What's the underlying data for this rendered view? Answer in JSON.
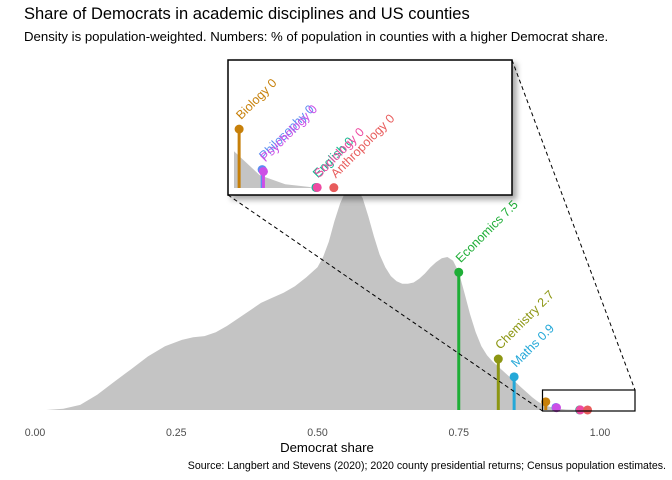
{
  "header": {
    "title": "Share of Democrats in academic disciplines and US counties",
    "subtitle": "Density is population-weighted. Numbers: % of population in counties with a higher Democrat share.",
    "caption": "Source: Langbert and Stevens (2020); 2020 county presidential returns; Census population estimates."
  },
  "chart_data": {
    "type": "area",
    "xlabel": "Democrat share",
    "ylabel": "",
    "xlim": [
      0,
      1.06
    ],
    "x_ticks": [
      "0.00",
      "0.25",
      "0.50",
      "0.75",
      "1.00"
    ],
    "x_tick_values": [
      0,
      0.25,
      0.5,
      0.75,
      1.0
    ],
    "grid": false,
    "density": {
      "name": "",
      "fill": "#c4c4c4",
      "x": [
        0.02,
        0.05,
        0.08,
        0.11,
        0.14,
        0.17,
        0.2,
        0.23,
        0.26,
        0.28,
        0.3,
        0.32,
        0.34,
        0.36,
        0.38,
        0.4,
        0.42,
        0.44,
        0.46,
        0.48,
        0.5,
        0.51,
        0.52,
        0.53,
        0.54,
        0.55,
        0.56,
        0.57,
        0.58,
        0.59,
        0.6,
        0.61,
        0.62,
        0.63,
        0.64,
        0.65,
        0.66,
        0.67,
        0.68,
        0.69,
        0.7,
        0.71,
        0.72,
        0.73,
        0.74,
        0.75,
        0.76,
        0.77,
        0.78,
        0.79,
        0.8,
        0.81,
        0.82,
        0.83,
        0.84,
        0.85,
        0.86,
        0.87,
        0.88,
        0.89,
        0.9,
        0.92,
        0.94,
        0.96,
        0.98,
        1.0
      ],
      "y": [
        0.0,
        0.05,
        0.2,
        0.6,
        1.1,
        1.6,
        2.1,
        2.5,
        2.75,
        2.85,
        2.9,
        3.05,
        3.3,
        3.6,
        3.9,
        4.2,
        4.4,
        4.6,
        4.85,
        5.2,
        5.6,
        6.0,
        6.6,
        7.4,
        8.1,
        8.6,
        8.8,
        8.7,
        8.3,
        7.6,
        6.8,
        6.1,
        5.6,
        5.25,
        5.05,
        4.95,
        4.95,
        5.0,
        5.15,
        5.35,
        5.6,
        5.8,
        5.95,
        6.0,
        5.85,
        5.4,
        4.6,
        3.75,
        3.05,
        2.5,
        2.15,
        1.9,
        1.7,
        1.5,
        1.3,
        1.1,
        0.9,
        0.7,
        0.5,
        0.33,
        0.2,
        0.07,
        0.02,
        0.005,
        0.0,
        0.0
      ]
    },
    "series": [
      {
        "name": "Economics",
        "label": "Economics 7.5",
        "x": 0.75,
        "y": 5.4,
        "color": "#1fae37"
      },
      {
        "name": "Chemistry",
        "label": "Chemistry 2.7",
        "x": 0.82,
        "y": 2.0,
        "color": "#8c9612"
      },
      {
        "name": "Maths",
        "label": "Maths 0.9",
        "x": 0.848,
        "y": 1.3,
        "color": "#24a8d8"
      },
      {
        "name": "Biology",
        "label": "Biology 0",
        "x": 0.904,
        "y": 0.32,
        "color": "#c7800a"
      },
      {
        "name": "Philosophy",
        "label": "Philosophy 0",
        "x": 0.922,
        "y": 0.1,
        "color": "#5c8cf2"
      },
      {
        "name": "Psychology",
        "label": "Psychology 0",
        "x": 0.923,
        "y": 0.09,
        "color": "#cc4fe6"
      },
      {
        "name": "English",
        "label": "English 0",
        "x": 0.964,
        "y": 0.003,
        "color": "#17b68f"
      },
      {
        "name": "Sociology",
        "label": "Sociology 0",
        "x": 0.965,
        "y": 0.003,
        "color": "#ee4aa2"
      },
      {
        "name": "Anthropology",
        "label": "Anthropology 0",
        "x": 0.978,
        "y": 0.002,
        "color": "#e85c5c"
      }
    ],
    "inset": {
      "zoom_x_range": [
        0.9,
        1.0
      ],
      "items": [
        "Biology",
        "Philosophy",
        "Psychology",
        "English",
        "Sociology",
        "Anthropology"
      ]
    },
    "legend": "none"
  }
}
